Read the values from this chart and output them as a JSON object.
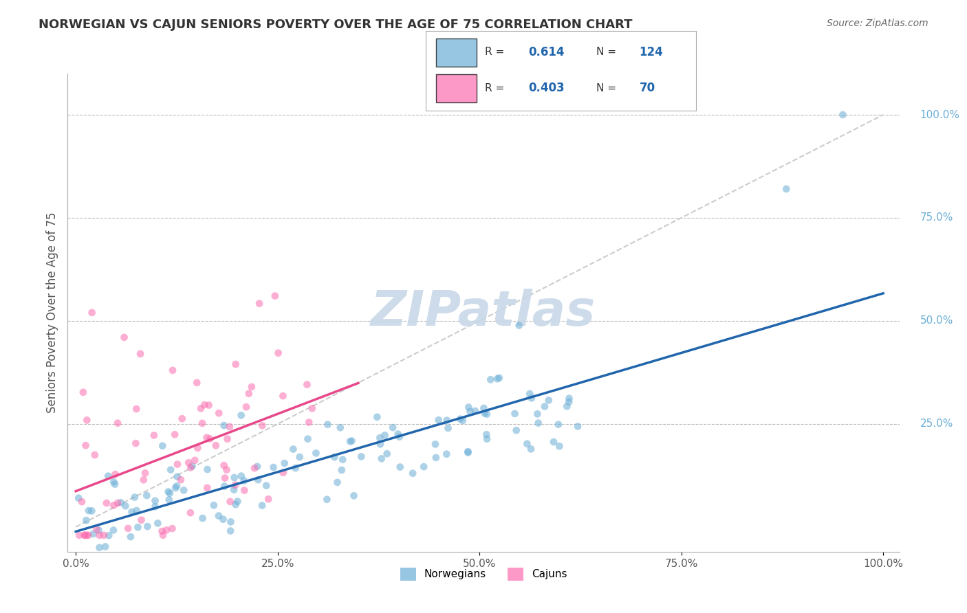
{
  "title": "NORWEGIAN VS CAJUN SENIORS POVERTY OVER THE AGE OF 75 CORRELATION CHART",
  "source": "Source: ZipAtlas.com",
  "xlabel": "",
  "ylabel": "Seniors Poverty Over the Age of 75",
  "xlim": [
    0,
    1
  ],
  "ylim": [
    -0.05,
    1.1
  ],
  "norwegian_R": 0.614,
  "norwegian_N": 124,
  "cajun_R": 0.403,
  "cajun_N": 70,
  "norwegian_color": "#6baed6",
  "cajun_color": "#fb6eb0",
  "norwegian_line_color": "#2166ac",
  "cajun_line_color": "#e8488a",
  "diagonal_color": "#cccccc",
  "grid_color": "#bbbbbb",
  "title_color": "#333333",
  "watermark_color": "#c8d8e8",
  "right_label_color": "#6baed6",
  "tick_label_color": "#555555",
  "background_color": "#ffffff"
}
